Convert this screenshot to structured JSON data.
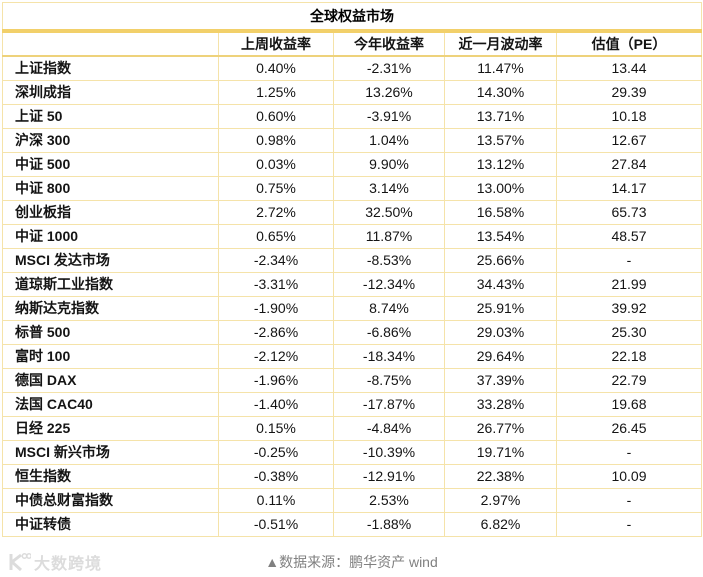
{
  "chart_data": {
    "type": "table",
    "title": "全球权益市场",
    "columns": [
      "",
      "上周收益率",
      "今年收益率",
      "近一月波动率",
      "估值（PE）"
    ],
    "rows": [
      [
        "上证指数",
        "0.40%",
        "-2.31%",
        "11.47%",
        "13.44"
      ],
      [
        "深圳成指",
        "1.25%",
        "13.26%",
        "14.30%",
        "29.39"
      ],
      [
        "上证 50",
        "0.60%",
        "-3.91%",
        "13.71%",
        "10.18"
      ],
      [
        "沪深 300",
        "0.98%",
        "1.04%",
        "13.57%",
        "12.67"
      ],
      [
        "中证 500",
        "0.03%",
        "9.90%",
        "13.12%",
        "27.84"
      ],
      [
        "中证 800",
        "0.75%",
        "3.14%",
        "13.00%",
        "14.17"
      ],
      [
        "创业板指",
        "2.72%",
        "32.50%",
        "16.58%",
        "65.73"
      ],
      [
        "中证 1000",
        "0.65%",
        "11.87%",
        "13.54%",
        "48.57"
      ],
      [
        "MSCI 发达市场",
        "-2.34%",
        "-8.53%",
        "25.66%",
        "-"
      ],
      [
        "道琼斯工业指数",
        "-3.31%",
        "-12.34%",
        "34.43%",
        "21.99"
      ],
      [
        "纳斯达克指数",
        "-1.90%",
        "8.74%",
        "25.91%",
        "39.92"
      ],
      [
        "标普 500",
        "-2.86%",
        "-6.86%",
        "29.03%",
        "25.30"
      ],
      [
        "富时 100",
        "-2.12%",
        "-18.34%",
        "29.64%",
        "22.18"
      ],
      [
        "德国 DAX",
        "-1.96%",
        "-8.75%",
        "37.39%",
        "22.79"
      ],
      [
        "法国 CAC40",
        "-1.40%",
        "-17.87%",
        "33.28%",
        "19.68"
      ],
      [
        "日经 225",
        "0.15%",
        "-4.84%",
        "26.77%",
        "26.45"
      ],
      [
        "MSCI 新兴市场",
        "-0.25%",
        "-10.39%",
        "19.71%",
        "-"
      ],
      [
        "恒生指数",
        "-0.38%",
        "-12.91%",
        "22.38%",
        "10.09"
      ],
      [
        "中债总财富指数",
        "0.11%",
        "2.53%",
        "2.97%",
        "-"
      ],
      [
        "中证转债",
        "-0.51%",
        "-1.88%",
        "6.82%",
        "-"
      ]
    ],
    "grid": true,
    "legend_position": "none"
  },
  "footer": {
    "source": "▲数据来源：鹏华资产  wind",
    "watermark": "大数跨境"
  },
  "colors": {
    "grid_line": "#f5e3a9",
    "accent_band": "#f2d06a",
    "text": "#141414",
    "source_text": "#808080",
    "watermark": "#dcdcdc"
  }
}
